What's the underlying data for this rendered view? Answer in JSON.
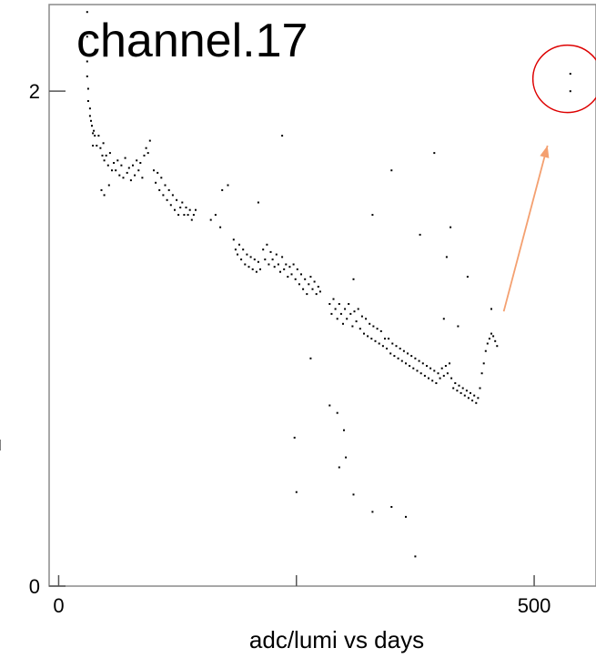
{
  "chart_data": {
    "type": "scatter",
    "title": "channel.17",
    "xlabel": "adc/lumi vs days",
    "ylabel": "",
    "xlim": [
      -10,
      565
    ],
    "ylim": [
      0,
      2.35
    ],
    "x_ticks": [
      0,
      250,
      500
    ],
    "y_ticks": [
      0,
      2
    ],
    "x_tick_labels": [
      "0",
      "",
      "500"
    ],
    "y_tick_labels": [
      "0",
      "2"
    ],
    "grid": false,
    "point_color": "#000000",
    "annotation_circle_color": "#dd0000",
    "annotation_arrow_color": "#f4a070",
    "annotation": {
      "type": "circle-with-arrow",
      "circle_center": [
        535,
        2.05
      ],
      "arrow_from": [
        468,
        1.11
      ],
      "arrow_to": [
        514,
        1.78
      ]
    },
    "series": [
      {
        "points": [
          [
            30,
            2.32
          ],
          [
            30,
            2.22
          ],
          [
            30,
            2.12
          ],
          [
            30,
            2.06
          ],
          [
            31,
            2.01
          ],
          [
            31,
            1.96
          ],
          [
            33,
            1.93
          ],
          [
            33,
            1.9
          ],
          [
            34,
            1.88
          ],
          [
            35,
            1.86
          ],
          [
            36,
            1.83
          ],
          [
            37,
            1.84
          ],
          [
            38,
            1.82
          ],
          [
            36,
            1.78
          ],
          [
            40,
            1.78
          ],
          [
            42,
            1.82
          ],
          [
            44,
            1.77
          ],
          [
            46,
            1.74
          ],
          [
            47,
            1.79
          ],
          [
            48,
            1.72
          ],
          [
            50,
            1.74
          ],
          [
            52,
            1.7
          ],
          [
            54,
            1.75
          ],
          [
            56,
            1.68
          ],
          [
            45,
            1.6
          ],
          [
            48,
            1.58
          ],
          [
            53,
            1.62
          ],
          [
            58,
            1.71
          ],
          [
            60,
            1.68
          ],
          [
            62,
            1.72
          ],
          [
            64,
            1.66
          ],
          [
            66,
            1.7
          ],
          [
            68,
            1.65
          ],
          [
            70,
            1.73
          ],
          [
            72,
            1.67
          ],
          [
            74,
            1.69
          ],
          [
            76,
            1.64
          ],
          [
            78,
            1.7
          ],
          [
            80,
            1.66
          ],
          [
            82,
            1.72
          ],
          [
            84,
            1.68
          ],
          [
            86,
            1.71
          ],
          [
            88,
            1.65
          ],
          [
            90,
            1.74
          ],
          [
            92,
            1.77
          ],
          [
            94,
            1.75
          ],
          [
            96,
            1.8
          ],
          [
            100,
            1.68
          ],
          [
            102,
            1.63
          ],
          [
            104,
            1.67
          ],
          [
            106,
            1.6
          ],
          [
            108,
            1.65
          ],
          [
            110,
            1.58
          ],
          [
            112,
            1.62
          ],
          [
            114,
            1.56
          ],
          [
            116,
            1.6
          ],
          [
            118,
            1.54
          ],
          [
            120,
            1.58
          ],
          [
            122,
            1.52
          ],
          [
            124,
            1.56
          ],
          [
            126,
            1.5
          ],
          [
            128,
            1.53
          ],
          [
            130,
            1.55
          ],
          [
            132,
            1.5
          ],
          [
            134,
            1.53
          ],
          [
            136,
            1.5
          ],
          [
            138,
            1.52
          ],
          [
            140,
            1.48
          ],
          [
            142,
            1.5
          ],
          [
            144,
            1.52
          ],
          [
            160,
            1.48
          ],
          [
            165,
            1.5
          ],
          [
            170,
            1.45
          ],
          [
            172,
            1.6
          ],
          [
            178,
            1.62
          ],
          [
            184,
            1.4
          ],
          [
            186,
            1.36
          ],
          [
            188,
            1.34
          ],
          [
            190,
            1.38
          ],
          [
            192,
            1.32
          ],
          [
            194,
            1.36
          ],
          [
            196,
            1.3
          ],
          [
            198,
            1.34
          ],
          [
            200,
            1.29
          ],
          [
            202,
            1.33
          ],
          [
            204,
            1.28
          ],
          [
            206,
            1.32
          ],
          [
            208,
            1.27
          ],
          [
            210,
            1.31
          ],
          [
            212,
            1.28
          ],
          [
            215,
            1.36
          ],
          [
            217,
            1.32
          ],
          [
            219,
            1.38
          ],
          [
            221,
            1.3
          ],
          [
            223,
            1.35
          ],
          [
            225,
            1.32
          ],
          [
            227,
            1.29
          ],
          [
            229,
            1.34
          ],
          [
            231,
            1.3
          ],
          [
            233,
            1.27
          ],
          [
            235,
            1.33
          ],
          [
            237,
            1.28
          ],
          [
            239,
            1.3
          ],
          [
            241,
            1.25
          ],
          [
            243,
            1.29
          ],
          [
            245,
            1.26
          ],
          [
            247,
            1.3
          ],
          [
            249,
            1.24
          ],
          [
            251,
            1.28
          ],
          [
            253,
            1.22
          ],
          [
            255,
            1.26
          ],
          [
            257,
            1.2
          ],
          [
            259,
            1.24
          ],
          [
            261,
            1.18
          ],
          [
            263,
            1.22
          ],
          [
            265,
            1.25
          ],
          [
            267,
            1.2
          ],
          [
            269,
            1.23
          ],
          [
            271,
            1.18
          ],
          [
            273,
            1.21
          ],
          [
            275,
            1.19
          ],
          [
            285,
            1.14
          ],
          [
            287,
            1.1
          ],
          [
            289,
            1.16
          ],
          [
            291,
            1.12
          ],
          [
            293,
            1.08
          ],
          [
            295,
            1.14
          ],
          [
            297,
            1.1
          ],
          [
            299,
            1.06
          ],
          [
            301,
            1.12
          ],
          [
            303,
            1.08
          ],
          [
            305,
            1.14
          ],
          [
            307,
            1.1
          ],
          [
            309,
            1.05
          ],
          [
            311,
            1.11
          ],
          [
            313,
            1.07
          ],
          [
            315,
            1.12
          ],
          [
            317,
            1.04
          ],
          [
            319,
            1.09
          ],
          [
            321,
            1.02
          ],
          [
            323,
            1.08
          ],
          [
            325,
            1.01
          ],
          [
            327,
            1.06
          ],
          [
            329,
            1.0
          ],
          [
            331,
            1.05
          ],
          [
            333,
            0.99
          ],
          [
            335,
            1.04
          ],
          [
            337,
            0.98
          ],
          [
            339,
            1.03
          ],
          [
            341,
            0.97
          ],
          [
            343,
            1.0
          ],
          [
            345,
            0.96
          ],
          [
            347,
            1.0
          ],
          [
            349,
            0.94
          ],
          [
            351,
            0.98
          ],
          [
            353,
            0.93
          ],
          [
            355,
            0.97
          ],
          [
            357,
            0.92
          ],
          [
            359,
            0.96
          ],
          [
            361,
            0.91
          ],
          [
            363,
            0.95
          ],
          [
            365,
            0.9
          ],
          [
            367,
            0.94
          ],
          [
            369,
            0.89
          ],
          [
            371,
            0.93
          ],
          [
            373,
            0.88
          ],
          [
            375,
            0.92
          ],
          [
            377,
            0.87
          ],
          [
            379,
            0.91
          ],
          [
            381,
            0.86
          ],
          [
            383,
            0.9
          ],
          [
            385,
            0.85
          ],
          [
            387,
            0.89
          ],
          [
            389,
            0.84
          ],
          [
            391,
            0.88
          ],
          [
            393,
            0.83
          ],
          [
            395,
            0.87
          ],
          [
            397,
            0.82
          ],
          [
            399,
            0.86
          ],
          [
            401,
            0.84
          ],
          [
            403,
            0.88
          ],
          [
            405,
            0.85
          ],
          [
            407,
            0.89
          ],
          [
            409,
            0.86
          ],
          [
            411,
            0.9
          ],
          [
            413,
            0.84
          ],
          [
            415,
            0.8
          ],
          [
            417,
            0.82
          ],
          [
            419,
            0.79
          ],
          [
            421,
            0.81
          ],
          [
            423,
            0.78
          ],
          [
            425,
            0.8
          ],
          [
            427,
            0.77
          ],
          [
            429,
            0.79
          ],
          [
            431,
            0.76
          ],
          [
            433,
            0.78
          ],
          [
            435,
            0.75
          ],
          [
            437,
            0.77
          ],
          [
            439,
            0.74
          ],
          [
            441,
            0.76
          ],
          [
            443,
            0.8
          ],
          [
            445,
            0.86
          ],
          [
            447,
            0.9
          ],
          [
            449,
            0.95
          ],
          [
            451,
            0.98
          ],
          [
            453,
            1.0
          ],
          [
            455,
            1.02
          ],
          [
            457,
            1.01
          ],
          [
            459,
            0.99
          ],
          [
            461,
            0.97
          ],
          [
            235,
            1.82
          ],
          [
            310,
            1.24
          ],
          [
            330,
            1.5
          ],
          [
            350,
            1.68
          ],
          [
            380,
            1.42
          ],
          [
            395,
            1.75
          ],
          [
            405,
            1.08
          ],
          [
            420,
            1.05
          ],
          [
            430,
            1.25
          ],
          [
            455,
            1.12
          ],
          [
            408,
            1.33
          ],
          [
            412,
            1.45
          ],
          [
            210,
            1.55
          ],
          [
            248,
            0.6
          ],
          [
            265,
            0.92
          ],
          [
            285,
            0.73
          ],
          [
            293,
            0.7
          ],
          [
            300,
            0.63
          ],
          [
            295,
            0.48
          ],
          [
            302,
            0.52
          ],
          [
            310,
            0.37
          ],
          [
            330,
            0.3
          ],
          [
            350,
            0.32
          ],
          [
            365,
            0.28
          ],
          [
            375,
            0.12
          ],
          [
            250,
            0.38
          ]
        ]
      },
      {
        "points": [
          [
            538,
            2.07
          ],
          [
            538,
            2.0
          ]
        ]
      }
    ]
  }
}
